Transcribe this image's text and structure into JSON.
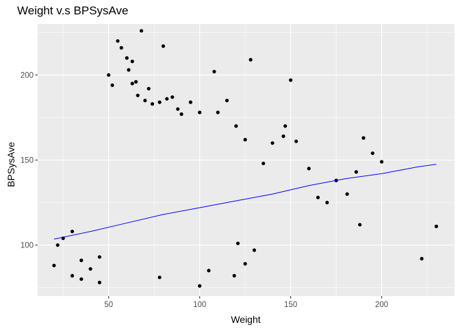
{
  "chart_data": {
    "type": "scatter",
    "title": "Weight v.s BPSysAve",
    "xlabel": "Weight",
    "ylabel": "BPSysAve",
    "xlim": [
      11,
      240
    ],
    "ylim": [
      70,
      230
    ],
    "xticks": [
      50,
      100,
      150,
      200
    ],
    "yticks": [
      100,
      150,
      200
    ],
    "grid": true,
    "panel_background": "#ebebeb",
    "grid_color": "#ffffff",
    "point_color": "#000000",
    "line_color": "#0000ff",
    "series": [
      {
        "kind": "points",
        "x": [
          50.0,
          52.0,
          55.0,
          57.0,
          60.0,
          61.0,
          63.0,
          63.0,
          65.0,
          66.0,
          68.0,
          70.0,
          72.0,
          74.0,
          78.0,
          80.0,
          82.0,
          85.0,
          88.0,
          90.0,
          95.0,
          100.0,
          108.0,
          110.0,
          115.0,
          120.0,
          125.0,
          128.0,
          135.0,
          140.0,
          146.0,
          147.0,
          150.0,
          153.0,
          160.0,
          165.0,
          170.0,
          175.0,
          181.0,
          186.0,
          188.0,
          190.0,
          195.0,
          200.0,
          222.0,
          230.0,
          30.0,
          25.0,
          22.0,
          20.0,
          35.0,
          40.0,
          45.0,
          100.0,
          105.0,
          119.0,
          121.0,
          125.0,
          130.0,
          30.0,
          35.0,
          45.0,
          78.0
        ],
        "y": [
          200.0,
          194.0,
          220.0,
          216.0,
          210.0,
          203.0,
          208.0,
          195.0,
          196.0,
          188.0,
          226.0,
          185.0,
          192.0,
          183.0,
          184.0,
          217.0,
          186.0,
          187.0,
          180.0,
          177.0,
          184.0,
          178.0,
          202.0,
          178.0,
          185.0,
          170.0,
          162.0,
          209.0,
          148.0,
          160.0,
          164.0,
          170.0,
          197.0,
          161.0,
          145.0,
          128.0,
          125.0,
          138.0,
          130.0,
          143.0,
          112.0,
          163.0,
          154.0,
          149.0,
          92.0,
          111.0,
          108.0,
          104.0,
          100.0,
          88.0,
          91.0,
          86.0,
          93.0,
          76.0,
          85.0,
          82.0,
          101.0,
          89.0,
          97.0,
          82.0,
          80.0,
          78.0,
          81.0
        ]
      },
      {
        "kind": "line",
        "x": [
          20.0,
          40.0,
          60.0,
          80.0,
          100.0,
          120.0,
          140.0,
          160.0,
          180.0,
          200.0,
          220.0,
          230.0
        ],
        "y": [
          103.5,
          108.0,
          113.0,
          118.0,
          122.0,
          126.0,
          130.0,
          135.0,
          139.0,
          142.0,
          146.0,
          147.5
        ]
      }
    ]
  }
}
